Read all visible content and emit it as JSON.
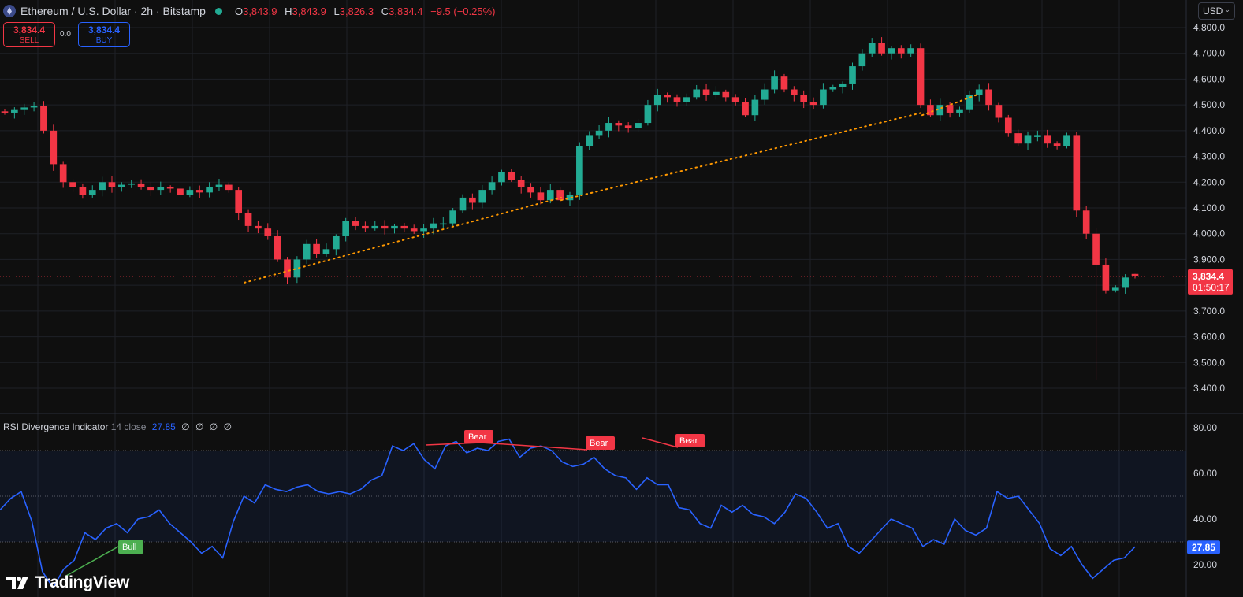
{
  "symbol": {
    "title": "Ethereum / U.S. Dollar · 2h · Bitstamp",
    "ohlc": [
      {
        "k": "O",
        "v": "3,843.9"
      },
      {
        "k": "H",
        "v": "3,843.9"
      },
      {
        "k": "L",
        "v": "3,826.3"
      },
      {
        "k": "C",
        "v": "3,834.4"
      }
    ],
    "change": "−9.5 (−0.25%)"
  },
  "trade": {
    "sell_price": "3,834.4",
    "sell_label": "SELL",
    "buy_price": "3,834.4",
    "buy_label": "BUY",
    "spread": "0.0"
  },
  "currency": "USD",
  "price_axis": {
    "ticks": [
      "4,800.0",
      "4,700.0",
      "4,600.0",
      "4,500.0",
      "4,400.0",
      "4,300.0",
      "4,200.0",
      "4,100.0",
      "4,000.0",
      "3,900.0",
      "3,800.0",
      "3,700.0",
      "3,600.0",
      "3,500.0",
      "3,400.0"
    ],
    "last_price": "3,834.4",
    "countdown": "01:50:17"
  },
  "rsi": {
    "title": "RSI Divergence Indicator",
    "args": "14 close",
    "value": "27.85",
    "extras": [
      "∅",
      "∅",
      "∅",
      "∅"
    ],
    "ticks": [
      "80.00",
      "60.00",
      "40.00",
      "20.00"
    ],
    "signals": [
      {
        "label": "Bull",
        "type": "bull"
      },
      {
        "label": "Bear",
        "type": "bear"
      },
      {
        "label": "Bear",
        "type": "bear"
      },
      {
        "label": "Bear",
        "type": "bear"
      }
    ]
  },
  "brand": "TradingView",
  "colors": {
    "up": "#22ab94",
    "down": "#f23645",
    "rsi": "#2962ff",
    "trend": "#ff9800",
    "background": "#0f0f0f",
    "grid": "#1f2127"
  },
  "chart_data": [
    {
      "type": "candlestick",
      "title": "Ethereum / U.S. Dollar · 2h · Bitstamp",
      "ylim": [
        3380,
        4830
      ],
      "y_ticks": [
        4800,
        4700,
        4600,
        4500,
        4400,
        4300,
        4200,
        4100,
        4000,
        3900,
        3800,
        3700,
        3600,
        3500,
        3400
      ],
      "last_price": 3834.4,
      "low_wick": 3430,
      "ohlc_last": {
        "open": 3843.9,
        "high": 3843.9,
        "low": 3826.3,
        "close": 3834.4
      },
      "close_path": [
        4470,
        4480,
        4490,
        4495,
        4400,
        4270,
        4200,
        4180,
        4150,
        4170,
        4200,
        4180,
        4190,
        4195,
        4180,
        4170,
        4180,
        4175,
        4150,
        4170,
        4160,
        4180,
        4190,
        4170,
        4080,
        4030,
        4020,
        3990,
        3900,
        3830,
        3900,
        3960,
        3920,
        3940,
        3990,
        4050,
        4030,
        4020,
        4030,
        4020,
        4030,
        4020,
        4010,
        4020,
        4040,
        4040,
        4090,
        4140,
        4120,
        4170,
        4200,
        4240,
        4210,
        4180,
        4160,
        4130,
        4170,
        4130,
        4150,
        4340,
        4380,
        4400,
        4430,
        4420,
        4410,
        4430,
        4500,
        4540,
        4530,
        4510,
        4530,
        4560,
        4540,
        4550,
        4530,
        4510,
        4460,
        4520,
        4560,
        4610,
        4560,
        4540,
        4510,
        4500,
        4560,
        4570,
        4580,
        4650,
        4700,
        4740,
        4700,
        4720,
        4700,
        4720,
        4500,
        4460,
        4500,
        4470,
        4480,
        4540,
        4560,
        4500,
        4450,
        4390,
        4350,
        4380,
        4380,
        4350,
        4340,
        4380,
        4090,
        4000,
        3880,
        3780,
        3790,
        3830,
        3834.4
      ],
      "trendlines": [
        {
          "from": 3810,
          "to": 4140,
          "style": "dotted"
        },
        {
          "from": 4130,
          "to": 4470,
          "style": "dotted"
        },
        {
          "from": 4460,
          "to": 4540,
          "style": "dotted"
        }
      ]
    },
    {
      "type": "line",
      "title": "RSI Divergence Indicator",
      "series": [
        {
          "name": "RSI",
          "values": [
            44,
            49,
            52,
            39,
            17,
            10,
            18,
            22,
            34,
            31,
            36,
            38,
            34,
            40,
            41,
            44,
            38,
            34,
            30,
            25,
            28,
            23,
            39,
            50,
            47,
            55,
            53,
            52,
            54,
            55,
            52,
            51,
            52,
            51,
            53,
            57,
            59,
            72,
            70,
            73,
            66,
            62,
            72,
            74,
            69,
            71,
            70,
            74,
            75,
            67,
            71,
            72,
            70,
            65,
            63,
            64,
            67,
            62,
            59,
            58,
            53,
            58,
            55,
            55,
            45,
            44,
            38,
            36,
            46,
            43,
            46,
            42,
            41,
            38,
            43,
            51,
            49,
            43,
            36,
            38,
            28,
            25,
            30,
            35,
            40,
            38,
            36,
            28,
            31,
            29,
            40,
            35,
            33,
            36,
            52,
            49,
            50,
            44,
            38,
            27,
            24,
            28,
            20,
            14,
            18,
            22,
            23,
            27.85
          ]
        }
      ],
      "ylim": [
        14,
        84
      ],
      "y_ticks": [
        80,
        60,
        40,
        20
      ],
      "band": [
        30,
        70
      ],
      "midline": 50,
      "divergences": [
        {
          "type": "bull",
          "from": 10,
          "to": 29
        },
        {
          "type": "bear",
          "from": 73,
          "to": 72
        },
        {
          "type": "bear",
          "from": 72,
          "to": 70
        },
        {
          "type": "bear",
          "from": 75,
          "to": 71
        }
      ]
    }
  ]
}
